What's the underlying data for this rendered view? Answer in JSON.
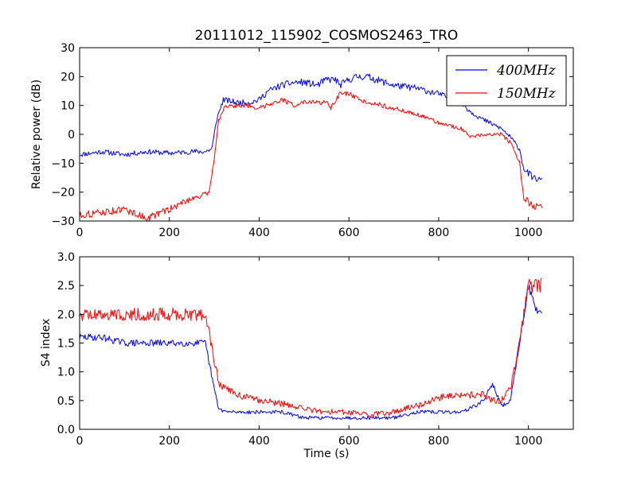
{
  "title": "20111012_115902_COSMOS2463_TRO",
  "chart_data": [
    {
      "type": "line",
      "panel": "top",
      "title": "20111012_115902_COSMOS2463_TRO",
      "xlabel": "",
      "ylabel": "Relative power (dB)",
      "xlim": [
        0,
        1100
      ],
      "ylim": [
        -30,
        30
      ],
      "xticks": [
        0,
        200,
        400,
        600,
        800,
        1000
      ],
      "yticks": [
        -30,
        -20,
        -10,
        0,
        10,
        20,
        30
      ],
      "xtick_labels": [
        "0",
        "200",
        "400",
        "600",
        "800",
        "1000"
      ],
      "ytick_labels": [
        "−30",
        "−20",
        "−10",
        "0",
        "10",
        "20",
        "30"
      ],
      "grid": false,
      "legend": "top-right",
      "series": [
        {
          "name": "400MHz",
          "color": "#0000ff",
          "noise": 1.4,
          "x": [
            0,
            50,
            100,
            150,
            200,
            250,
            280,
            295,
            305,
            320,
            350,
            380,
            400,
            420,
            450,
            480,
            500,
            530,
            550,
            570,
            580,
            600,
            620,
            640,
            660,
            700,
            750,
            800,
            850,
            870,
            900,
            940,
            960,
            980,
            990,
            1010,
            1030
          ],
          "y": [
            -7,
            -6,
            -7,
            -6,
            -6.5,
            -6,
            -6,
            -5,
            5,
            12,
            11,
            11,
            12,
            15,
            17,
            18,
            18,
            17,
            19,
            19,
            17,
            19,
            20,
            20,
            19,
            17,
            16,
            14,
            11,
            8,
            5,
            2,
            -1,
            -5,
            -12,
            -15,
            -16
          ]
        },
        {
          "name": "150MHz",
          "color": "#ff0000",
          "noise": 1.2,
          "x": [
            0,
            50,
            100,
            150,
            200,
            250,
            280,
            290,
            300,
            310,
            320,
            350,
            380,
            400,
            430,
            450,
            480,
            500,
            530,
            550,
            560,
            580,
            600,
            620,
            650,
            700,
            750,
            800,
            850,
            870,
            900,
            940,
            960,
            980,
            990,
            1010,
            1030
          ],
          "y": [
            -28,
            -27,
            -26,
            -29,
            -26,
            -22,
            -21,
            -19,
            -8,
            5,
            9,
            10,
            10,
            9,
            11,
            12,
            10,
            11,
            11,
            11,
            9,
            14,
            14,
            12,
            11,
            9,
            7,
            4,
            2,
            -1,
            0,
            0,
            -3,
            -10,
            -22,
            -25,
            -25
          ]
        }
      ]
    },
    {
      "type": "line",
      "panel": "bottom",
      "title": "",
      "xlabel": "Time (s)",
      "ylabel": "S4 index",
      "xlim": [
        0,
        1100
      ],
      "ylim": [
        0,
        3
      ],
      "xticks": [
        0,
        200,
        400,
        600,
        800,
        1000
      ],
      "yticks": [
        0,
        0.5,
        1,
        1.5,
        2,
        2.5,
        3
      ],
      "xtick_labels": [
        "0",
        "200",
        "400",
        "600",
        "800",
        "1000"
      ],
      "ytick_labels": [
        "0.0",
        "0.5",
        "1.0",
        "1.5",
        "2.0",
        "2.5",
        "3.0"
      ],
      "grid": false,
      "series": [
        {
          "name": "400MHz",
          "color": "#0000ff",
          "noise": 0.05,
          "x": [
            0,
            50,
            100,
            150,
            200,
            250,
            280,
            300,
            310,
            330,
            350,
            400,
            450,
            500,
            550,
            600,
            650,
            700,
            750,
            800,
            850,
            880,
            900,
            920,
            940,
            960,
            980,
            1000,
            1020,
            1030
          ],
          "y": [
            1.6,
            1.6,
            1.5,
            1.5,
            1.5,
            1.5,
            1.5,
            0.7,
            0.35,
            0.3,
            0.3,
            0.3,
            0.3,
            0.2,
            0.2,
            0.2,
            0.2,
            0.2,
            0.3,
            0.3,
            0.3,
            0.4,
            0.5,
            0.8,
            0.4,
            0.5,
            1.5,
            2.5,
            2.0,
            2.0
          ]
        },
        {
          "name": "150MHz",
          "color": "#ff0000",
          "noise": 0.08,
          "x": [
            0,
            50,
            100,
            150,
            200,
            250,
            280,
            300,
            310,
            330,
            350,
            400,
            450,
            500,
            550,
            600,
            650,
            700,
            750,
            800,
            850,
            880,
            900,
            920,
            940,
            960,
            980,
            1000,
            1020,
            1030
          ],
          "y": [
            2.0,
            2.0,
            2.0,
            2.0,
            2.0,
            2.0,
            2.0,
            1.2,
            0.8,
            0.7,
            0.6,
            0.5,
            0.45,
            0.35,
            0.3,
            0.3,
            0.25,
            0.3,
            0.4,
            0.55,
            0.6,
            0.6,
            0.6,
            0.5,
            0.5,
            0.7,
            1.5,
            2.5,
            2.5,
            2.5
          ]
        }
      ]
    }
  ]
}
